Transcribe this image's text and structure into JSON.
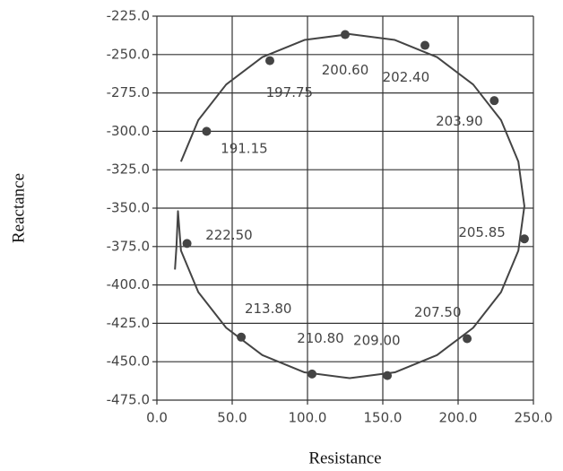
{
  "chart_data": {
    "type": "scatter",
    "xlabel": "Resistance",
    "ylabel": "Reactance",
    "xlim": [
      0,
      250
    ],
    "ylim": [
      -475,
      -225
    ],
    "xticks": [
      {
        "value": 0,
        "label": "0.0"
      },
      {
        "value": 50,
        "label": "50.0"
      },
      {
        "value": 100,
        "label": "100.0"
      },
      {
        "value": 150,
        "label": "150.0"
      },
      {
        "value": 200,
        "label": "200.0"
      },
      {
        "value": 250,
        "label": "250.0"
      }
    ],
    "yticks": [
      {
        "value": -225,
        "label": "-225.0"
      },
      {
        "value": -250,
        "label": "-250.0"
      },
      {
        "value": -275,
        "label": "-275.0"
      },
      {
        "value": -300,
        "label": "-300.0"
      },
      {
        "value": -325,
        "label": "-325.0"
      },
      {
        "value": -350,
        "label": "-350.0"
      },
      {
        "value": -375,
        "label": "-375.0"
      },
      {
        "value": -400,
        "label": "-400.0"
      },
      {
        "value": -425,
        "label": "-425.0"
      },
      {
        "value": -450,
        "label": "-450.0"
      },
      {
        "value": -475,
        "label": "-475.0"
      }
    ],
    "grid": true,
    "color": "#444444",
    "points": {
      "x": [
        33,
        75,
        125,
        178,
        224,
        244,
        206,
        153,
        103,
        56,
        20
      ],
      "y": [
        -300,
        -254,
        -237,
        -244,
        -280,
        -370,
        -435,
        -459,
        -458,
        -434,
        -373
      ],
      "labels": [
        "191.15",
        "197.75",
        "200.60",
        "202.40",
        "203.90",
        "205.85",
        "207.50",
        "209.00",
        "210.80",
        "213.80",
        "222.50"
      ]
    },
    "curve": {
      "x": [
        16,
        27.5,
        46,
        70,
        98,
        128,
        158,
        186,
        210,
        228.5,
        240,
        244,
        240,
        228.5,
        210,
        186,
        158,
        128,
        98,
        70,
        46,
        27.5,
        16,
        14,
        13,
        12
      ],
      "y": [
        -319.7,
        -292.7,
        -269.5,
        -251.7,
        -240.5,
        -236.7,
        -240.5,
        -251.7,
        -269.5,
        -292.7,
        -319.7,
        -348.7,
        -377.7,
        -404.7,
        -427.9,
        -445.7,
        -456.9,
        -460.7,
        -456.9,
        -445.7,
        -427.9,
        -404.7,
        -377.7,
        -352,
        -375,
        -390
      ]
    }
  }
}
